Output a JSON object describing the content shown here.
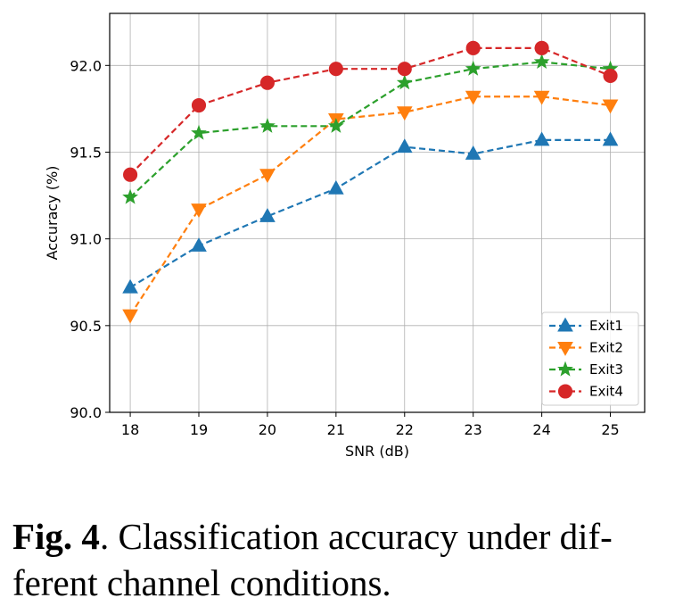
{
  "chart_data": {
    "type": "line",
    "xlabel": "SNR (dB)",
    "ylabel": "Accuracy (%)",
    "x": [
      18,
      19,
      20,
      21,
      22,
      23,
      24,
      25
    ],
    "xlim": [
      17.7,
      25.5
    ],
    "ylim": [
      90.0,
      92.3
    ],
    "yticks": [
      "90.0",
      "90.5",
      "91.0",
      "91.5",
      "92.0"
    ],
    "xticks": [
      "18",
      "19",
      "20",
      "21",
      "22",
      "23",
      "24",
      "25"
    ],
    "grid": true,
    "legend_position": "lower-right",
    "series": [
      {
        "name": "Exit1",
        "color": "#1f77b4",
        "marker": "triangle-up",
        "values": [
          90.72,
          90.96,
          91.13,
          91.29,
          91.53,
          91.49,
          91.57,
          91.57
        ]
      },
      {
        "name": "Exit2",
        "color": "#ff7f0e",
        "marker": "triangle-down",
        "values": [
          90.56,
          91.17,
          91.37,
          91.69,
          91.73,
          91.82,
          91.82,
          91.77
        ]
      },
      {
        "name": "Exit3",
        "color": "#2ca02c",
        "marker": "star",
        "values": [
          91.24,
          91.61,
          91.65,
          91.65,
          91.9,
          91.98,
          92.02,
          91.98
        ]
      },
      {
        "name": "Exit4",
        "color": "#d62728",
        "marker": "circle",
        "values": [
          91.37,
          91.77,
          91.9,
          91.98,
          91.98,
          92.1,
          92.1,
          91.94
        ]
      }
    ]
  },
  "caption": {
    "label": "Fig. 4",
    "text": ". Classification accuracy under dif-ferent channel conditions."
  }
}
